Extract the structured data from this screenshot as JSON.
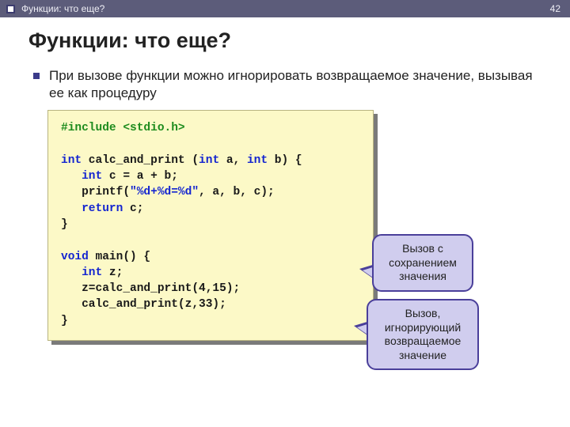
{
  "header": {
    "breadcrumb": "Функции: что еще?",
    "page_number": "42",
    "bar_color": "#5c5c7a",
    "text_color": "#eeeef5"
  },
  "title": "Функции: что еще?",
  "bullet": {
    "marker_color": "#3b3b8a",
    "text": "При вызове функции можно игнорировать возвращаемое значение, вызывая  ее как процедуру"
  },
  "code": {
    "background_color": "#fcf9c7",
    "shadow_color": "#7a7a7a",
    "border_color": "#b8b380",
    "font_family": "Courier New",
    "token_colors": {
      "preprocessor": "#1e8c1e",
      "keyword": "#1425d0",
      "string": "#1425d0",
      "default": "#1a1a1a"
    },
    "tokens": {
      "l1a": "#include <stdio.h>",
      "l3a": "int",
      "l3b": " calc_and_print (",
      "l3c": "int",
      "l3d": " a, ",
      "l3e": "int",
      "l3f": " b) {",
      "l4a": "int",
      "l4b": " c = a + b;",
      "l5a": "   printf(",
      "l5b": "\"%d+%d=%d\"",
      "l5c": ", a, b, c);",
      "l6a": "return",
      "l6b": " c;",
      "l7a": "}",
      "l9a": "void",
      "l9b": " main() {",
      "l10a": "int",
      "l10b": " z;",
      "l11a": "   z=calc_and_print(4,15);",
      "l12a": "   calc_and_print(z,33);",
      "l13a": "}"
    }
  },
  "callouts": {
    "c1": "Вызов с сохранением значения",
    "c2": "Вызов, игнорирующий возвращаемое значение",
    "background_color": "#d0cdee",
    "border_color": "#4a3f9a",
    "border_radius": 12
  }
}
